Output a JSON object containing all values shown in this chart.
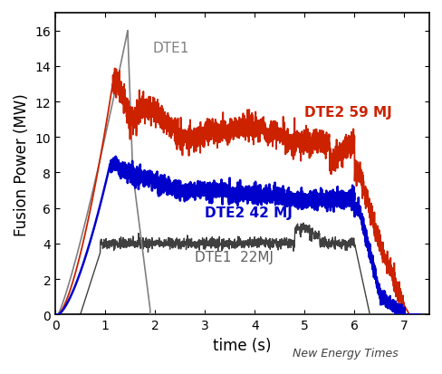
{
  "title": "",
  "xlabel": "time (s)",
  "ylabel": "Fusion Power (MW)",
  "xlim": [
    0.0,
    7.5
  ],
  "ylim": [
    0,
    17
  ],
  "yticks": [
    0,
    2,
    4,
    6,
    8,
    10,
    12,
    14,
    16
  ],
  "xticks": [
    0.0,
    1.0,
    2.0,
    3.0,
    4.0,
    5.0,
    6.0,
    7.0
  ],
  "background_color": "#ffffff",
  "border_color": "#000000",
  "dte1_peak_color": "#808080",
  "dte1_flat_color": "#808080",
  "dte2_59_color": "#cc2200",
  "dte2_42_color": "#0000cc",
  "watermark": "New Energy Times",
  "label_dte1_peak": "DTE1",
  "label_dte2_59": "DTE2 59 MJ",
  "label_dte2_42": "DTE2 42 MJ",
  "label_dte1_flat": "DTE1  22MJ",
  "seed": 42
}
